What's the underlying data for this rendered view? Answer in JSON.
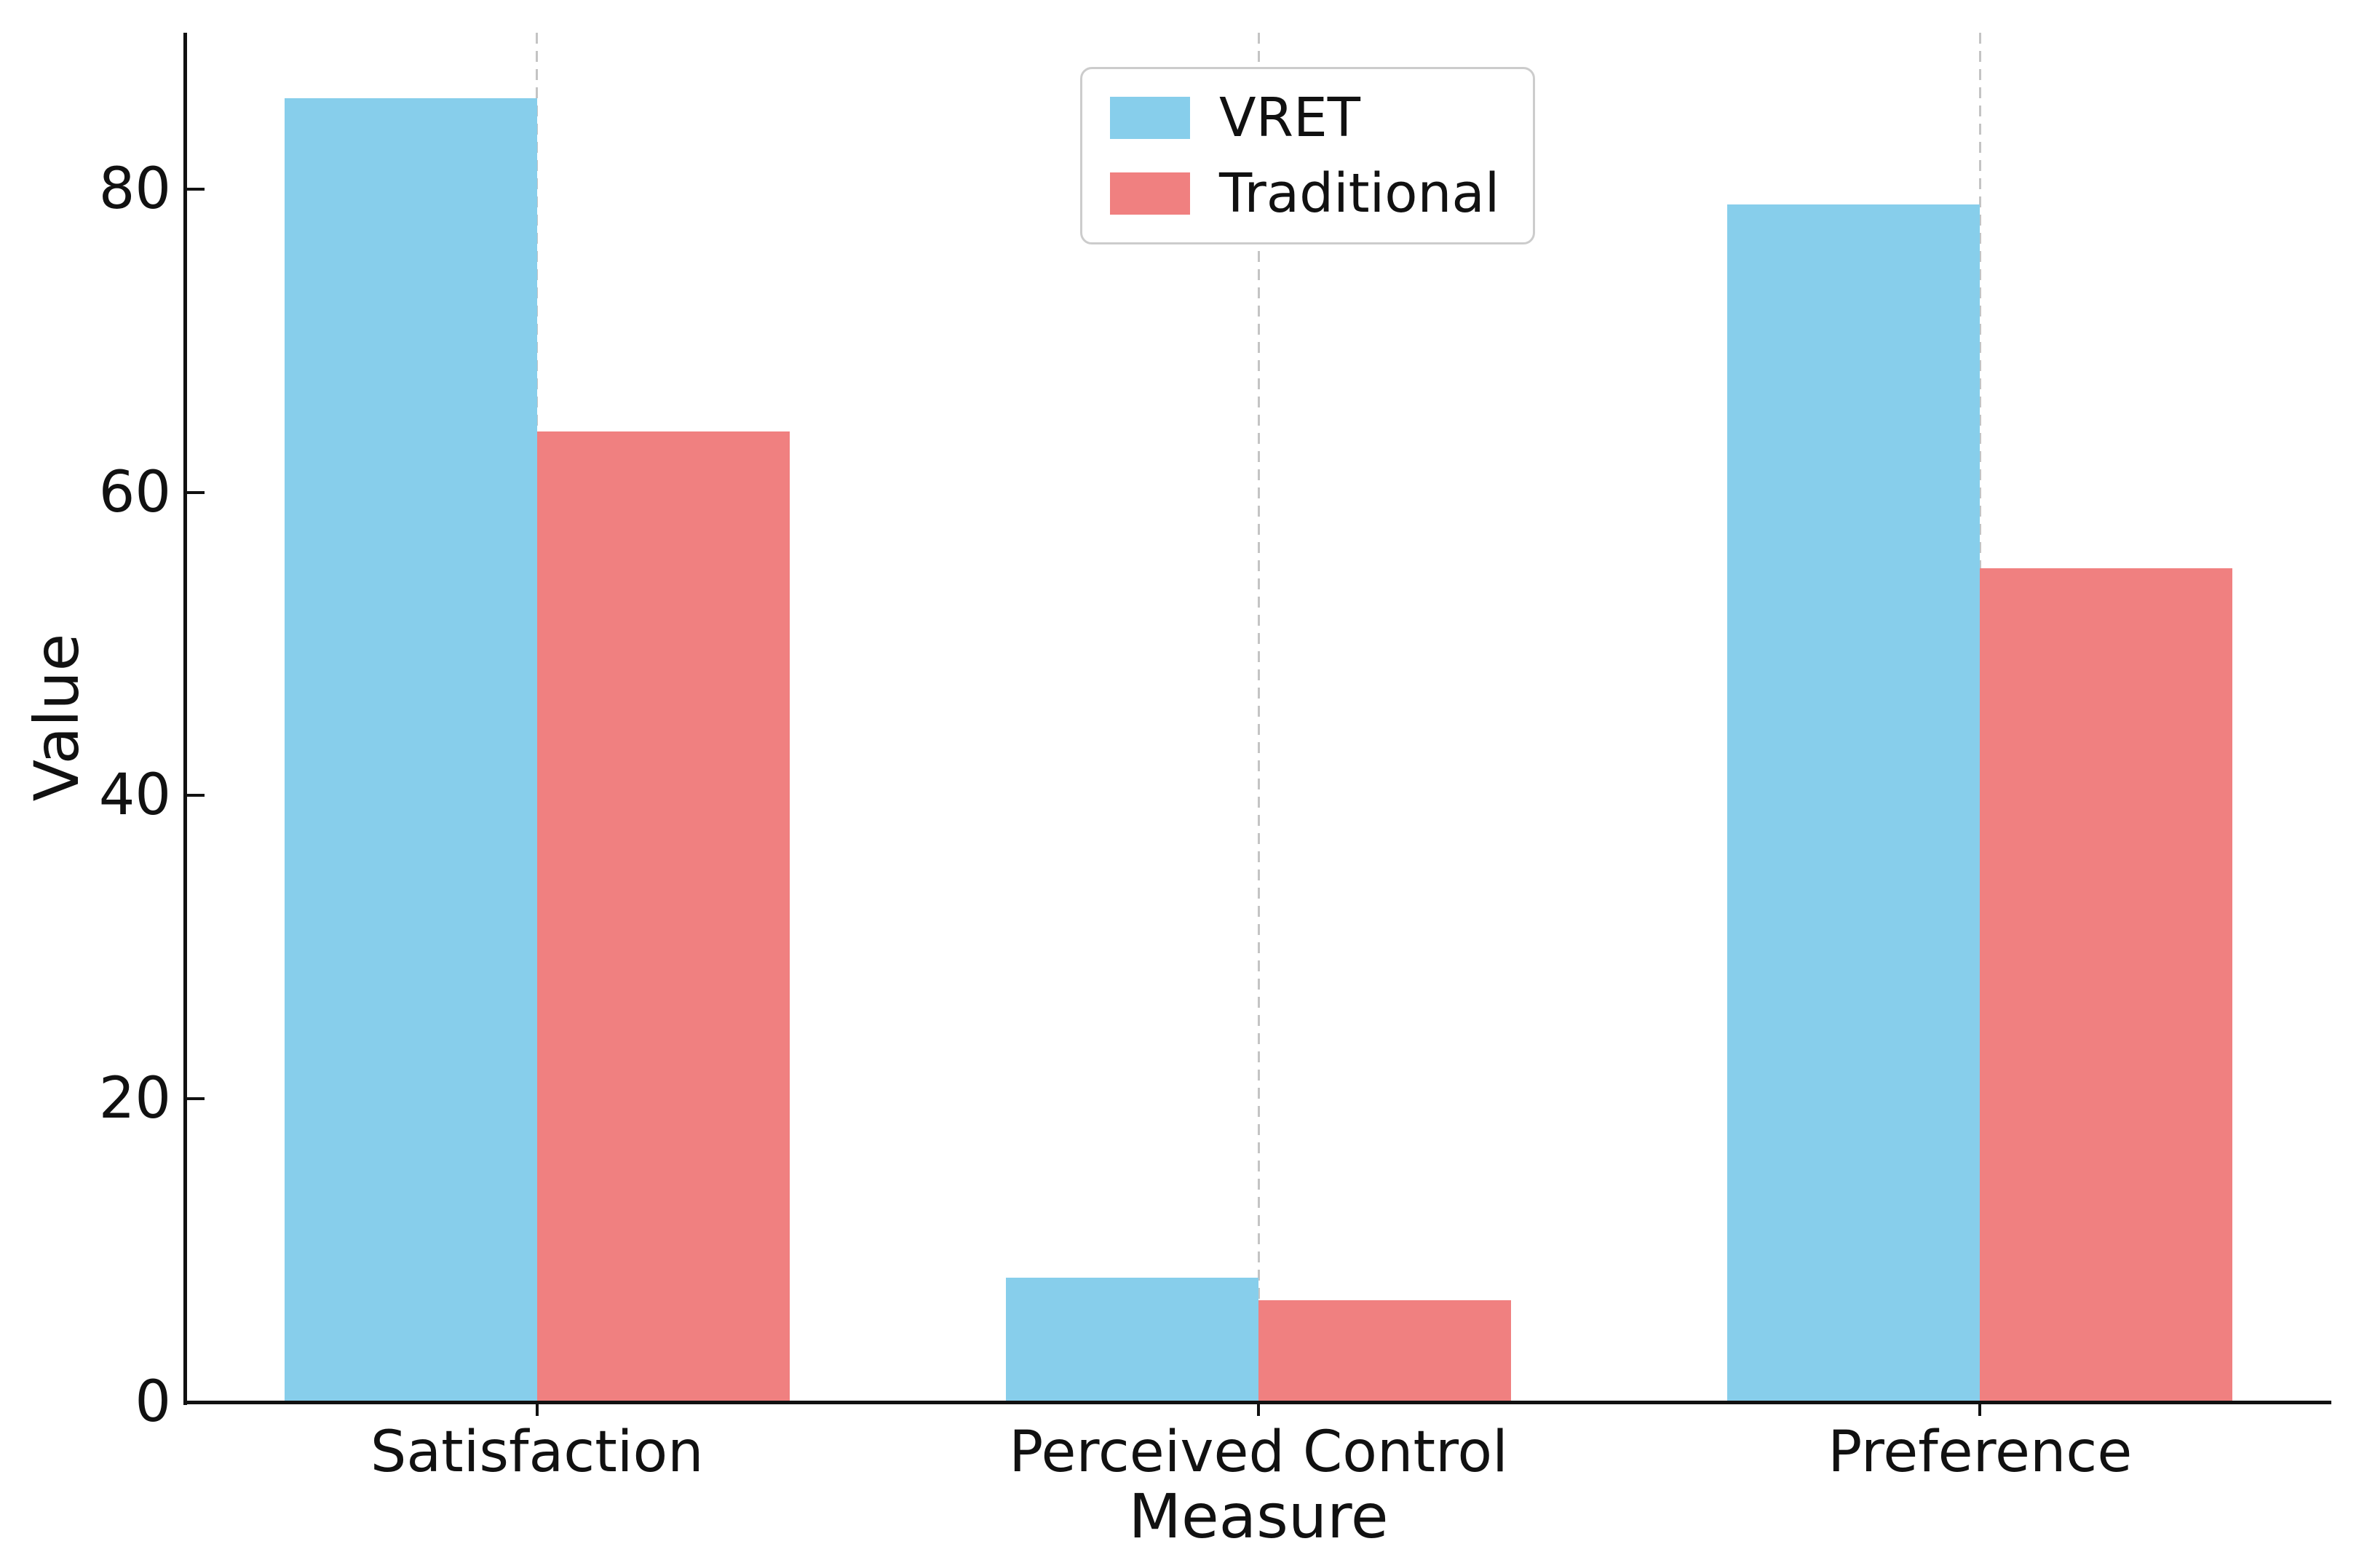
{
  "figure": {
    "background": "#ffffff",
    "axis_color": "#111111",
    "grid_color": "#c4c4c4",
    "legend_border_color": "#cccccc"
  },
  "chart_data": {
    "type": "bar",
    "categories": [
      "Satisfaction",
      "Perceived Control",
      "Preference"
    ],
    "series": [
      {
        "name": "VRET",
        "color": "#87CEEB",
        "values": [
          86,
          8.2,
          79
        ]
      },
      {
        "name": "Traditional",
        "color": "#F08080",
        "values": [
          64,
          6.7,
          55
        ]
      }
    ],
    "xlabel": "Measure",
    "ylabel": "Value",
    "ylim": [
      0,
      90.3
    ],
    "yticks": [
      0,
      20,
      40,
      60,
      80
    ],
    "grid": "vertical-dashed-at-category-centers",
    "legend_position": "upper center",
    "bar_width_fraction": 0.35
  }
}
